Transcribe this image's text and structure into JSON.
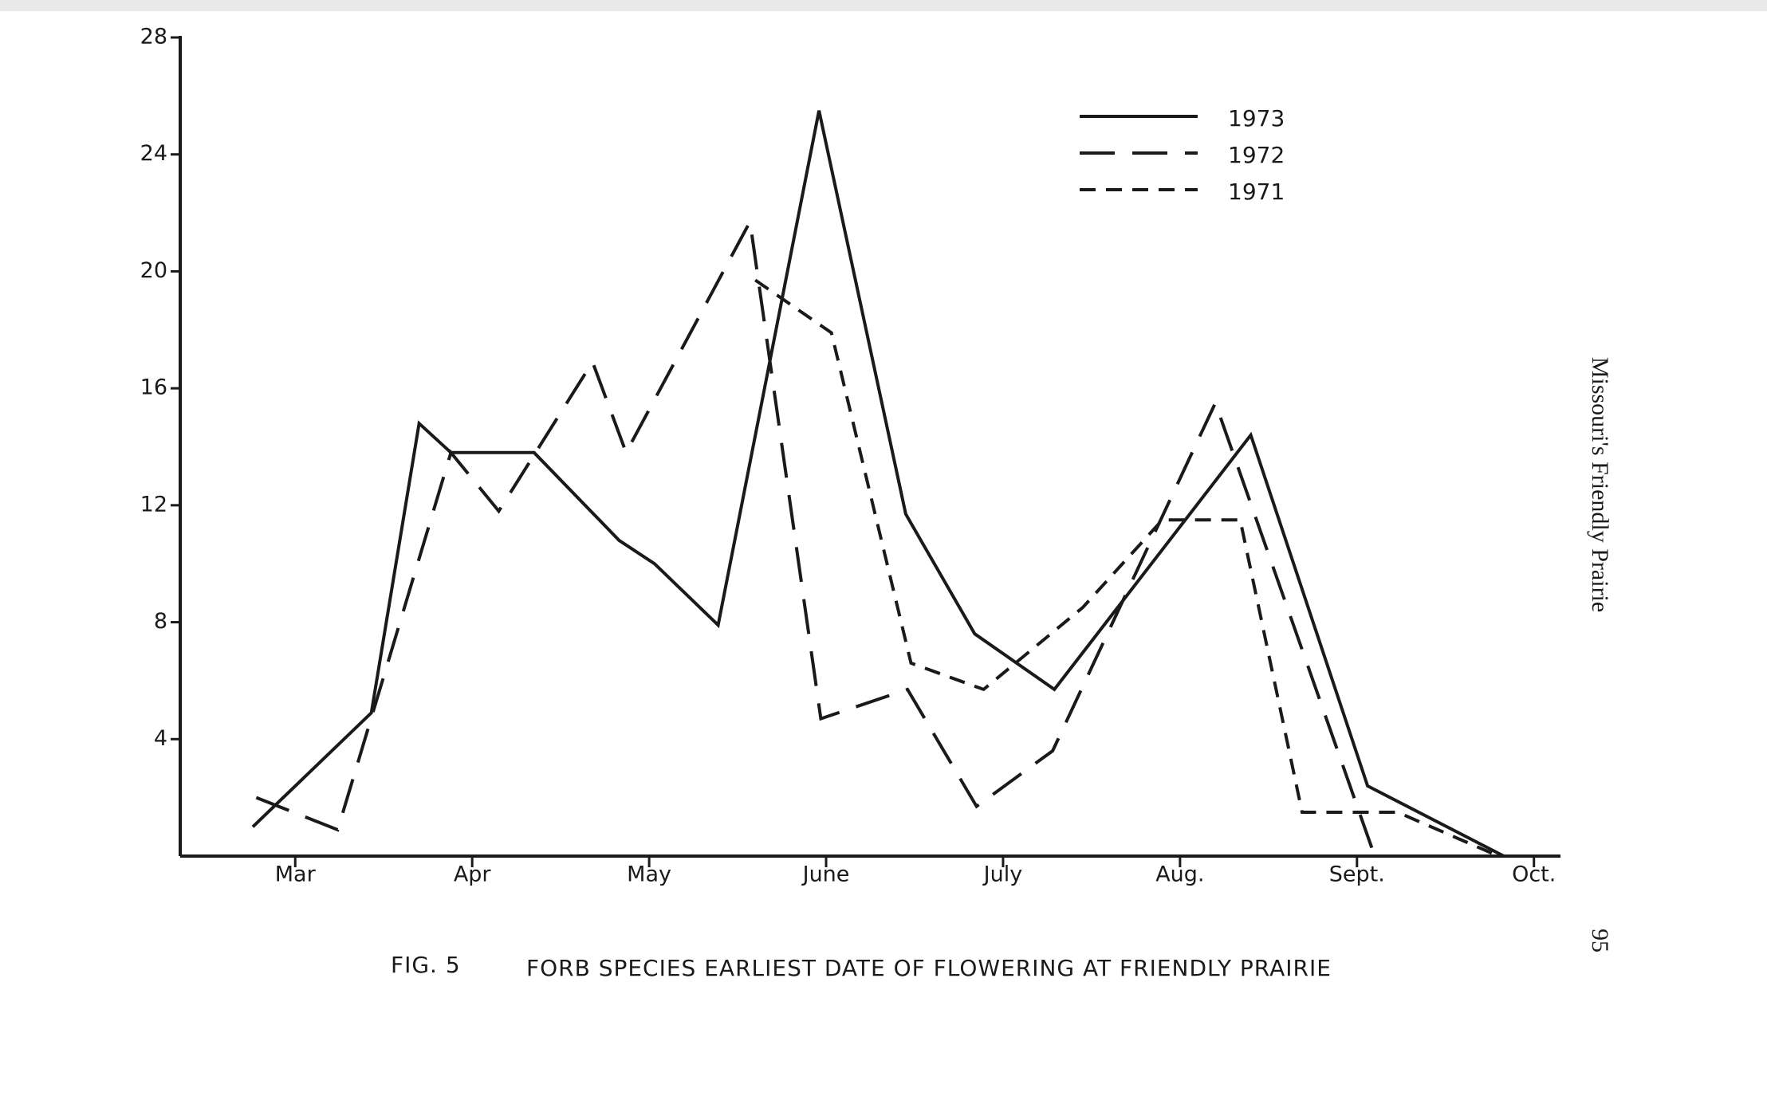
{
  "page": {
    "running_head": "Missouri's Friendly Prairie",
    "page_number": 95
  },
  "chart_data": {
    "type": "line",
    "figure_label": "FIG. 5",
    "title": "FORB SPECIES EARLIEST DATE OF FLOWERING AT FRIENDLY PRAIRIE",
    "xlim": [
      2.35,
      10.15
    ],
    "xticks": [
      {
        "value": 3,
        "label": "Mar"
      },
      {
        "value": 4,
        "label": "Apr"
      },
      {
        "value": 5,
        "label": "May"
      },
      {
        "value": 6,
        "label": "June"
      },
      {
        "value": 7,
        "label": "July"
      },
      {
        "value": 8,
        "label": "Aug."
      },
      {
        "value": 9,
        "label": "Sept."
      },
      {
        "value": 10,
        "label": "Oct."
      }
    ],
    "ylim": [
      0,
      28
    ],
    "yticks": [
      4,
      8,
      12,
      16,
      20,
      24,
      28
    ],
    "legend": "upper right",
    "series": [
      {
        "name": "1973",
        "color": "#1a1a1a",
        "line_style": "solid",
        "x": [
          2.76,
          3.43,
          3.7,
          3.88,
          4.35,
          4.83,
          5.03,
          5.39,
          5.96,
          6.45,
          6.84,
          7.29,
          8.4,
          9.06,
          9.83
        ],
        "values": [
          1.0,
          4.9,
          14.8,
          13.8,
          13.8,
          10.8,
          10.0,
          7.9,
          25.5,
          11.7,
          7.6,
          5.7,
          14.4,
          2.4,
          0
        ]
      },
      {
        "name": "1972",
        "color": "#1a1a1a",
        "line_style": "long-dash",
        "x": [
          2.78,
          3.24,
          3.88,
          4.15,
          4.68,
          4.87,
          5.57,
          5.97,
          6.46,
          6.85,
          7.28,
          8.2,
          9.1
        ],
        "values": [
          2.0,
          0.9,
          13.8,
          11.8,
          16.9,
          13.8,
          21.7,
          4.7,
          5.7,
          1.7,
          3.6,
          15.5,
          0
        ]
      },
      {
        "name": "1971",
        "color": "#1a1a1a",
        "line_style": "short-dash",
        "x": [
          5.6,
          6.03,
          6.48,
          6.89,
          7.45,
          7.9,
          8.34,
          8.69,
          9.23,
          9.8
        ],
        "values": [
          19.7,
          17.9,
          6.6,
          5.7,
          8.5,
          11.5,
          11.5,
          1.5,
          1.5,
          0
        ]
      }
    ]
  }
}
